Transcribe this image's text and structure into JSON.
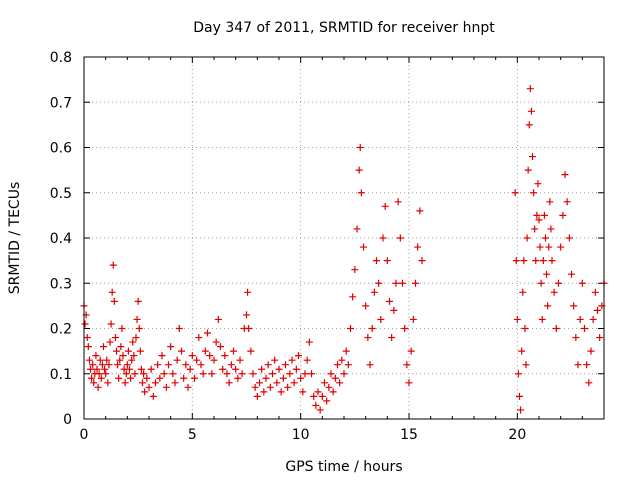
{
  "chart_data": {
    "type": "scatter",
    "title": "Day 347 of 2011, SRMTID for receiver hnpt",
    "xlabel": "GPS time / hours",
    "ylabel": "SRMTID / TECUs",
    "xlim": [
      0,
      24
    ],
    "ylim": [
      0,
      0.8
    ],
    "xticks": [
      0,
      5,
      10,
      15,
      20
    ],
    "xtick_labels": [
      "0",
      "5",
      "10",
      "15",
      "20"
    ],
    "yticks": [
      0,
      0.1,
      0.2,
      0.3,
      0.4,
      0.5,
      0.6,
      0.7,
      0.8
    ],
    "ytick_labels": [
      "0",
      "0.1",
      "0.2",
      "0.3",
      "0.4",
      "0.5",
      "0.6",
      "0.7",
      "0.8"
    ],
    "grid": true,
    "marker": "+",
    "series": [
      {
        "name": "SRMTID",
        "color": "#e00000",
        "points": [
          [
            0.0,
            0.25
          ],
          [
            0.05,
            0.21
          ],
          [
            0.1,
            0.23
          ],
          [
            0.15,
            0.18
          ],
          [
            0.2,
            0.16
          ],
          [
            0.25,
            0.13
          ],
          [
            0.3,
            0.11
          ],
          [
            0.35,
            0.09
          ],
          [
            0.4,
            0.12
          ],
          [
            0.45,
            0.08
          ],
          [
            0.5,
            0.1
          ],
          [
            0.55,
            0.14
          ],
          [
            0.6,
            0.11
          ],
          [
            0.65,
            0.07
          ],
          [
            0.7,
            0.1
          ],
          [
            0.75,
            0.13
          ],
          [
            0.8,
            0.09
          ],
          [
            0.85,
            0.12
          ],
          [
            0.9,
            0.16
          ],
          [
            0.95,
            0.11
          ],
          [
            1.0,
            0.1
          ],
          [
            1.05,
            0.13
          ],
          [
            1.1,
            0.08
          ],
          [
            1.15,
            0.12
          ],
          [
            1.2,
            0.17
          ],
          [
            1.25,
            0.21
          ],
          [
            1.3,
            0.28
          ],
          [
            1.35,
            0.34
          ],
          [
            1.4,
            0.26
          ],
          [
            1.45,
            0.18
          ],
          [
            1.5,
            0.15
          ],
          [
            1.55,
            0.12
          ],
          [
            1.6,
            0.09
          ],
          [
            1.65,
            0.13
          ],
          [
            1.7,
            0.16
          ],
          [
            1.75,
            0.2
          ],
          [
            1.8,
            0.14
          ],
          [
            1.85,
            0.11
          ],
          [
            1.9,
            0.08
          ],
          [
            1.95,
            0.1
          ],
          [
            2.0,
            0.12
          ],
          [
            2.05,
            0.15
          ],
          [
            2.1,
            0.11
          ],
          [
            2.15,
            0.09
          ],
          [
            2.2,
            0.13
          ],
          [
            2.25,
            0.17
          ],
          [
            2.3,
            0.14
          ],
          [
            2.35,
            0.1
          ],
          [
            2.4,
            0.18
          ],
          [
            2.45,
            0.22
          ],
          [
            2.5,
            0.26
          ],
          [
            2.55,
            0.2
          ],
          [
            2.6,
            0.15
          ],
          [
            2.65,
            0.11
          ],
          [
            2.7,
            0.08
          ],
          [
            2.75,
            0.1
          ],
          [
            2.8,
            0.06
          ],
          [
            2.9,
            0.09
          ],
          [
            3.0,
            0.07
          ],
          [
            3.1,
            0.11
          ],
          [
            3.2,
            0.05
          ],
          [
            3.3,
            0.08
          ],
          [
            3.4,
            0.12
          ],
          [
            3.5,
            0.09
          ],
          [
            3.6,
            0.14
          ],
          [
            3.7,
            0.1
          ],
          [
            3.8,
            0.07
          ],
          [
            3.9,
            0.12
          ],
          [
            4.0,
            0.16
          ],
          [
            4.1,
            0.1
          ],
          [
            4.2,
            0.08
          ],
          [
            4.3,
            0.13
          ],
          [
            4.4,
            0.2
          ],
          [
            4.5,
            0.15
          ],
          [
            4.6,
            0.09
          ],
          [
            4.7,
            0.12
          ],
          [
            4.8,
            0.07
          ],
          [
            4.9,
            0.11
          ],
          [
            5.0,
            0.14
          ],
          [
            5.1,
            0.09
          ],
          [
            5.2,
            0.13
          ],
          [
            5.3,
            0.18
          ],
          [
            5.4,
            0.12
          ],
          [
            5.5,
            0.1
          ],
          [
            5.6,
            0.15
          ],
          [
            5.7,
            0.19
          ],
          [
            5.8,
            0.14
          ],
          [
            5.9,
            0.1
          ],
          [
            6.0,
            0.13
          ],
          [
            6.1,
            0.17
          ],
          [
            6.2,
            0.22
          ],
          [
            6.3,
            0.16
          ],
          [
            6.4,
            0.11
          ],
          [
            6.5,
            0.14
          ],
          [
            6.6,
            0.1
          ],
          [
            6.7,
            0.08
          ],
          [
            6.8,
            0.12
          ],
          [
            6.9,
            0.15
          ],
          [
            7.0,
            0.11
          ],
          [
            7.1,
            0.09
          ],
          [
            7.2,
            0.13
          ],
          [
            7.3,
            0.1
          ],
          [
            7.4,
            0.2
          ],
          [
            7.5,
            0.23
          ],
          [
            7.55,
            0.28
          ],
          [
            7.6,
            0.2
          ],
          [
            7.7,
            0.15
          ],
          [
            7.8,
            0.1
          ],
          [
            7.9,
            0.07
          ],
          [
            8.0,
            0.05
          ],
          [
            8.1,
            0.08
          ],
          [
            8.2,
            0.11
          ],
          [
            8.3,
            0.06
          ],
          [
            8.4,
            0.09
          ],
          [
            8.5,
            0.12
          ],
          [
            8.6,
            0.07
          ],
          [
            8.7,
            0.1
          ],
          [
            8.8,
            0.13
          ],
          [
            8.9,
            0.08
          ],
          [
            9.0,
            0.11
          ],
          [
            9.1,
            0.06
          ],
          [
            9.2,
            0.09
          ],
          [
            9.3,
            0.12
          ],
          [
            9.4,
            0.07
          ],
          [
            9.5,
            0.1
          ],
          [
            9.6,
            0.13
          ],
          [
            9.7,
            0.08
          ],
          [
            9.8,
            0.11
          ],
          [
            9.9,
            0.14
          ],
          [
            10.0,
            0.09
          ],
          [
            10.1,
            0.06
          ],
          [
            10.2,
            0.1
          ],
          [
            10.3,
            0.13
          ],
          [
            10.4,
            0.17
          ],
          [
            10.5,
            0.1
          ],
          [
            10.6,
            0.05
          ],
          [
            10.7,
            0.03
          ],
          [
            10.8,
            0.06
          ],
          [
            10.9,
            0.02
          ],
          [
            11.0,
            0.05
          ],
          [
            11.1,
            0.08
          ],
          [
            11.2,
            0.04
          ],
          [
            11.3,
            0.07
          ],
          [
            11.4,
            0.1
          ],
          [
            11.5,
            0.06
          ],
          [
            11.6,
            0.09
          ],
          [
            11.7,
            0.12
          ],
          [
            11.8,
            0.08
          ],
          [
            11.9,
            0.13
          ],
          [
            12.0,
            0.1
          ],
          [
            12.1,
            0.15
          ],
          [
            12.2,
            0.12
          ],
          [
            12.3,
            0.2
          ],
          [
            12.4,
            0.27
          ],
          [
            12.5,
            0.33
          ],
          [
            12.6,
            0.42
          ],
          [
            12.7,
            0.55
          ],
          [
            12.75,
            0.6
          ],
          [
            12.8,
            0.5
          ],
          [
            12.9,
            0.38
          ],
          [
            13.0,
            0.25
          ],
          [
            13.1,
            0.18
          ],
          [
            13.2,
            0.12
          ],
          [
            13.3,
            0.2
          ],
          [
            13.4,
            0.28
          ],
          [
            13.5,
            0.35
          ],
          [
            13.6,
            0.3
          ],
          [
            13.7,
            0.22
          ],
          [
            13.8,
            0.4
          ],
          [
            13.9,
            0.47
          ],
          [
            14.0,
            0.35
          ],
          [
            14.1,
            0.26
          ],
          [
            14.2,
            0.18
          ],
          [
            14.3,
            0.24
          ],
          [
            14.4,
            0.3
          ],
          [
            14.5,
            0.48
          ],
          [
            14.6,
            0.4
          ],
          [
            14.7,
            0.3
          ],
          [
            14.8,
            0.2
          ],
          [
            14.9,
            0.12
          ],
          [
            15.0,
            0.08
          ],
          [
            15.1,
            0.15
          ],
          [
            15.2,
            0.22
          ],
          [
            15.3,
            0.3
          ],
          [
            15.4,
            0.38
          ],
          [
            15.5,
            0.46
          ],
          [
            15.6,
            0.35
          ],
          [
            19.9,
            0.5
          ],
          [
            19.95,
            0.35
          ],
          [
            20.0,
            0.22
          ],
          [
            20.05,
            0.1
          ],
          [
            20.1,
            0.05
          ],
          [
            20.15,
            0.02
          ],
          [
            20.2,
            0.15
          ],
          [
            20.25,
            0.28
          ],
          [
            20.3,
            0.35
          ],
          [
            20.35,
            0.2
          ],
          [
            20.4,
            0.12
          ],
          [
            20.45,
            0.4
          ],
          [
            20.5,
            0.55
          ],
          [
            20.55,
            0.65
          ],
          [
            20.6,
            0.73
          ],
          [
            20.65,
            0.68
          ],
          [
            20.7,
            0.58
          ],
          [
            20.75,
            0.5
          ],
          [
            20.8,
            0.42
          ],
          [
            20.85,
            0.35
          ],
          [
            20.9,
            0.45
          ],
          [
            20.95,
            0.52
          ],
          [
            21.0,
            0.44
          ],
          [
            21.05,
            0.38
          ],
          [
            21.1,
            0.3
          ],
          [
            21.15,
            0.22
          ],
          [
            21.2,
            0.35
          ],
          [
            21.25,
            0.45
          ],
          [
            21.3,
            0.4
          ],
          [
            21.35,
            0.32
          ],
          [
            21.4,
            0.25
          ],
          [
            21.45,
            0.38
          ],
          [
            21.5,
            0.48
          ],
          [
            21.55,
            0.42
          ],
          [
            21.6,
            0.35
          ],
          [
            21.7,
            0.28
          ],
          [
            21.8,
            0.2
          ],
          [
            21.9,
            0.3
          ],
          [
            22.0,
            0.38
          ],
          [
            22.1,
            0.45
          ],
          [
            22.2,
            0.54
          ],
          [
            22.3,
            0.48
          ],
          [
            22.4,
            0.4
          ],
          [
            22.5,
            0.32
          ],
          [
            22.6,
            0.25
          ],
          [
            22.7,
            0.18
          ],
          [
            22.8,
            0.12
          ],
          [
            22.9,
            0.22
          ],
          [
            23.0,
            0.3
          ],
          [
            23.1,
            0.2
          ],
          [
            23.2,
            0.12
          ],
          [
            23.3,
            0.08
          ],
          [
            23.4,
            0.15
          ],
          [
            23.5,
            0.22
          ],
          [
            23.6,
            0.28
          ],
          [
            23.7,
            0.24
          ],
          [
            23.8,
            0.18
          ],
          [
            23.9,
            0.25
          ],
          [
            24.0,
            0.3
          ]
        ]
      }
    ]
  }
}
